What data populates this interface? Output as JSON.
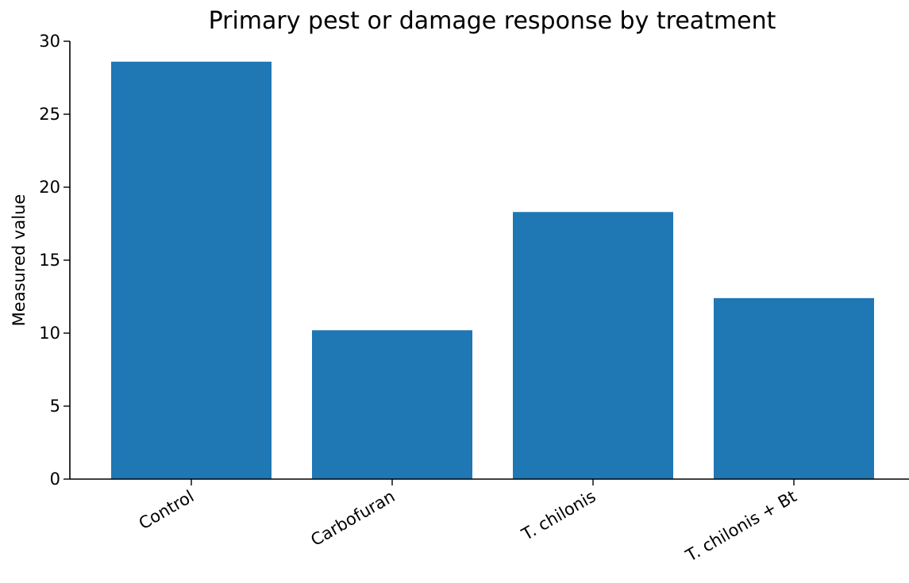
{
  "chart_data": {
    "type": "bar",
    "title": "Primary pest or damage response by treatment",
    "xlabel": "",
    "ylabel": "Measured value",
    "categories": [
      "Control",
      "Carbofuran",
      "T. chilonis",
      "T. chilonis + Bt"
    ],
    "values": [
      28.6,
      10.2,
      18.3,
      12.4
    ],
    "ylim": [
      0,
      30
    ],
    "yticks": [
      0,
      5,
      10,
      15,
      20,
      25,
      30
    ],
    "bar_color": "#1f77b4",
    "grid": false,
    "legend": false
  }
}
